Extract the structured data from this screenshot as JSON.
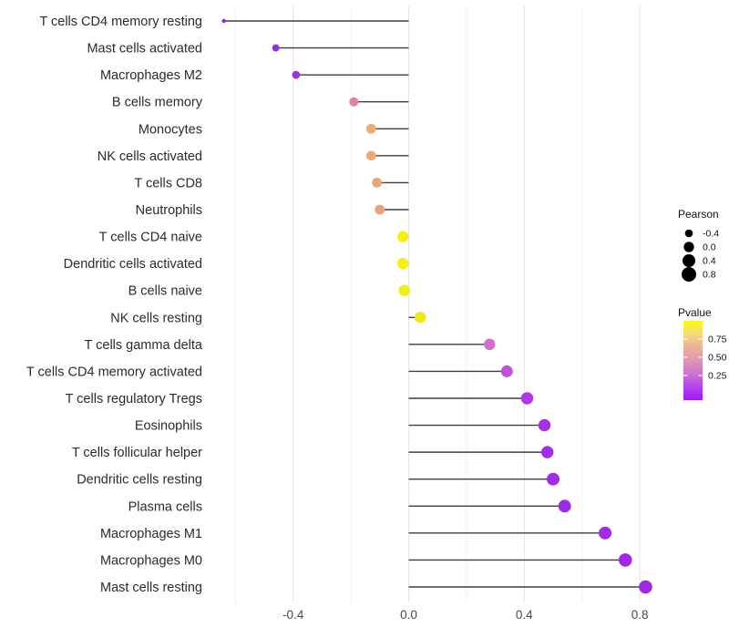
{
  "chart_data": {
    "type": "lollipop",
    "orientation": "horizontal",
    "title": "",
    "xlabel": "",
    "ylabel": "",
    "x_tick_labels": [
      "-0.4",
      "0.0",
      "0.4",
      "0.8"
    ],
    "x_tick_values": [
      -0.4,
      0.0,
      0.4,
      0.8
    ],
    "x_minor_grid_values": [
      -0.6,
      -0.2,
      0.2,
      0.6
    ],
    "xlim": [
      -0.68,
      0.89
    ],
    "grid": true,
    "legend_position": "right",
    "points": [
      {
        "label": "T cells CD4 memory resting",
        "pearson": -0.64,
        "color": "#822CD8",
        "r": 2.2
      },
      {
        "label": "Mast cells activated",
        "pearson": -0.46,
        "color": "#9334DB",
        "r": 4.0
      },
      {
        "label": "Macrophages M2",
        "pearson": -0.39,
        "color": "#9C34DE",
        "r": 4.4
      },
      {
        "label": "B cells memory",
        "pearson": -0.19,
        "color": "#E081A6",
        "r": 5.0
      },
      {
        "label": "Monocytes",
        "pearson": -0.13,
        "color": "#ECAA75",
        "r": 5.4
      },
      {
        "label": "NK cells activated",
        "pearson": -0.13,
        "color": "#ECAA75",
        "r": 5.4
      },
      {
        "label": "T cells CD8",
        "pearson": -0.11,
        "color": "#E9A577",
        "r": 5.4
      },
      {
        "label": "Neutrophils",
        "pearson": -0.1,
        "color": "#E7A378",
        "r": 5.4
      },
      {
        "label": "T cells CD4 naive",
        "pearson": -0.02,
        "color": "#F4F014",
        "r": 6.2
      },
      {
        "label": "Dendritic cells activated",
        "pearson": -0.02,
        "color": "#F4F014",
        "r": 6.2
      },
      {
        "label": "B cells naive",
        "pearson": -0.015,
        "color": "#F3EE16",
        "r": 6.2
      },
      {
        "label": "NK cells resting",
        "pearson": 0.04,
        "color": "#F0E818",
        "r": 6.2
      },
      {
        "label": "T cells gamma delta",
        "pearson": 0.28,
        "color": "#D26FC7",
        "r": 6.2
      },
      {
        "label": "T cells CD4 memory activated",
        "pearson": 0.34,
        "color": "#C250DA",
        "r": 6.5
      },
      {
        "label": "T cells regulatory  Tregs",
        "pearson": 0.41,
        "color": "#AE39E2",
        "r": 6.7
      },
      {
        "label": "Eosinophils",
        "pearson": 0.47,
        "color": "#A52FE6",
        "r": 6.7
      },
      {
        "label": "T cells follicular helper",
        "pearson": 0.48,
        "color": "#A32DE7",
        "r": 6.7
      },
      {
        "label": "Dendritic cells resting",
        "pearson": 0.5,
        "color": "#A02CE8",
        "r": 7.0
      },
      {
        "label": "Plasma cells",
        "pearson": 0.54,
        "color": "#9E2BE9",
        "r": 7.0
      },
      {
        "label": "Macrophages M1",
        "pearson": 0.68,
        "color": "#A02AE6",
        "r": 7.0
      },
      {
        "label": "Macrophages M0",
        "pearson": 0.75,
        "color": "#A129E5",
        "r": 7.3
      },
      {
        "label": "Mast cells resting",
        "pearson": 0.82,
        "color": "#A228E4",
        "r": 7.3
      }
    ],
    "legends": {
      "size": {
        "title": "Pearson",
        "dot_color": "#000000",
        "entries": [
          {
            "label": "-0.4",
            "r": 4.3
          },
          {
            "label": "0.0",
            "r": 5.7
          },
          {
            "label": "0.4",
            "r": 7.0
          },
          {
            "label": "0.8",
            "r": 8.0
          }
        ]
      },
      "color": {
        "title": "Pvalue",
        "tick_labels": [
          "0.75",
          "0.50",
          "0.25"
        ],
        "gradient_top_to_bottom": [
          "#FCFC12",
          "#F6D87E",
          "#EBB096",
          "#E096B4",
          "#CE74D2",
          "#B542EE",
          "#A315FA"
        ]
      }
    },
    "colors": {
      "stem": "#3E3E3E",
      "grid_major": "#E5E5E5",
      "grid_minor": "#F2F2F2",
      "axis_tick_text": "#4A4A4A",
      "category_text": "#2B2B2B",
      "legend_text": "#111111",
      "background": "#FFFFFF"
    }
  }
}
